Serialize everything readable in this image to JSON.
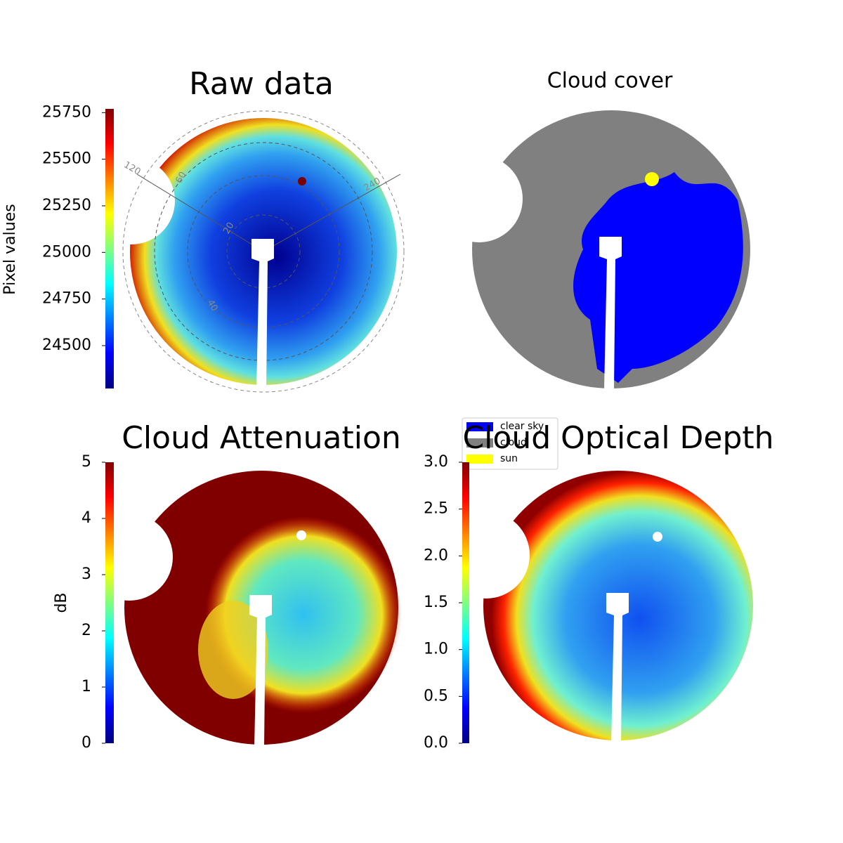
{
  "chart_data": [
    {
      "type": "image",
      "title": "Raw data",
      "colormap": "jet",
      "zlabel": "Pixel values",
      "zlim": [
        24270,
        25770
      ],
      "zticks": [
        24500,
        24750,
        25000,
        25250,
        25500,
        25750
      ],
      "annotations": [
        "120",
        "60",
        "20",
        "40",
        "240"
      ]
    },
    {
      "type": "image",
      "title": "Cloud cover",
      "series": [
        {
          "name": "clear sky",
          "color": "#0000ff"
        },
        {
          "name": "cloud",
          "color": "#808080"
        },
        {
          "name": "sun",
          "color": "#ffff00"
        }
      ]
    },
    {
      "type": "image",
      "title": "Cloud Attenuation",
      "colormap": "jet",
      "zlabel": "dB",
      "zlim": [
        0,
        5
      ],
      "zticks": [
        0,
        1,
        2,
        3,
        4,
        5
      ]
    },
    {
      "type": "image",
      "title": "Cloud Optical Depth",
      "colormap": "jet",
      "zlim": [
        0,
        3
      ],
      "zticks": [
        {
          "value": 0,
          "label": "0.0"
        },
        {
          "value": 0.5,
          "label": "0.5"
        },
        {
          "value": 1,
          "label": "1.0"
        },
        {
          "value": 1.5,
          "label": "1.5"
        },
        {
          "value": 2,
          "label": "2.0"
        },
        {
          "value": 2.5,
          "label": "2.5"
        },
        {
          "value": 3,
          "label": "3.0"
        }
      ]
    }
  ]
}
